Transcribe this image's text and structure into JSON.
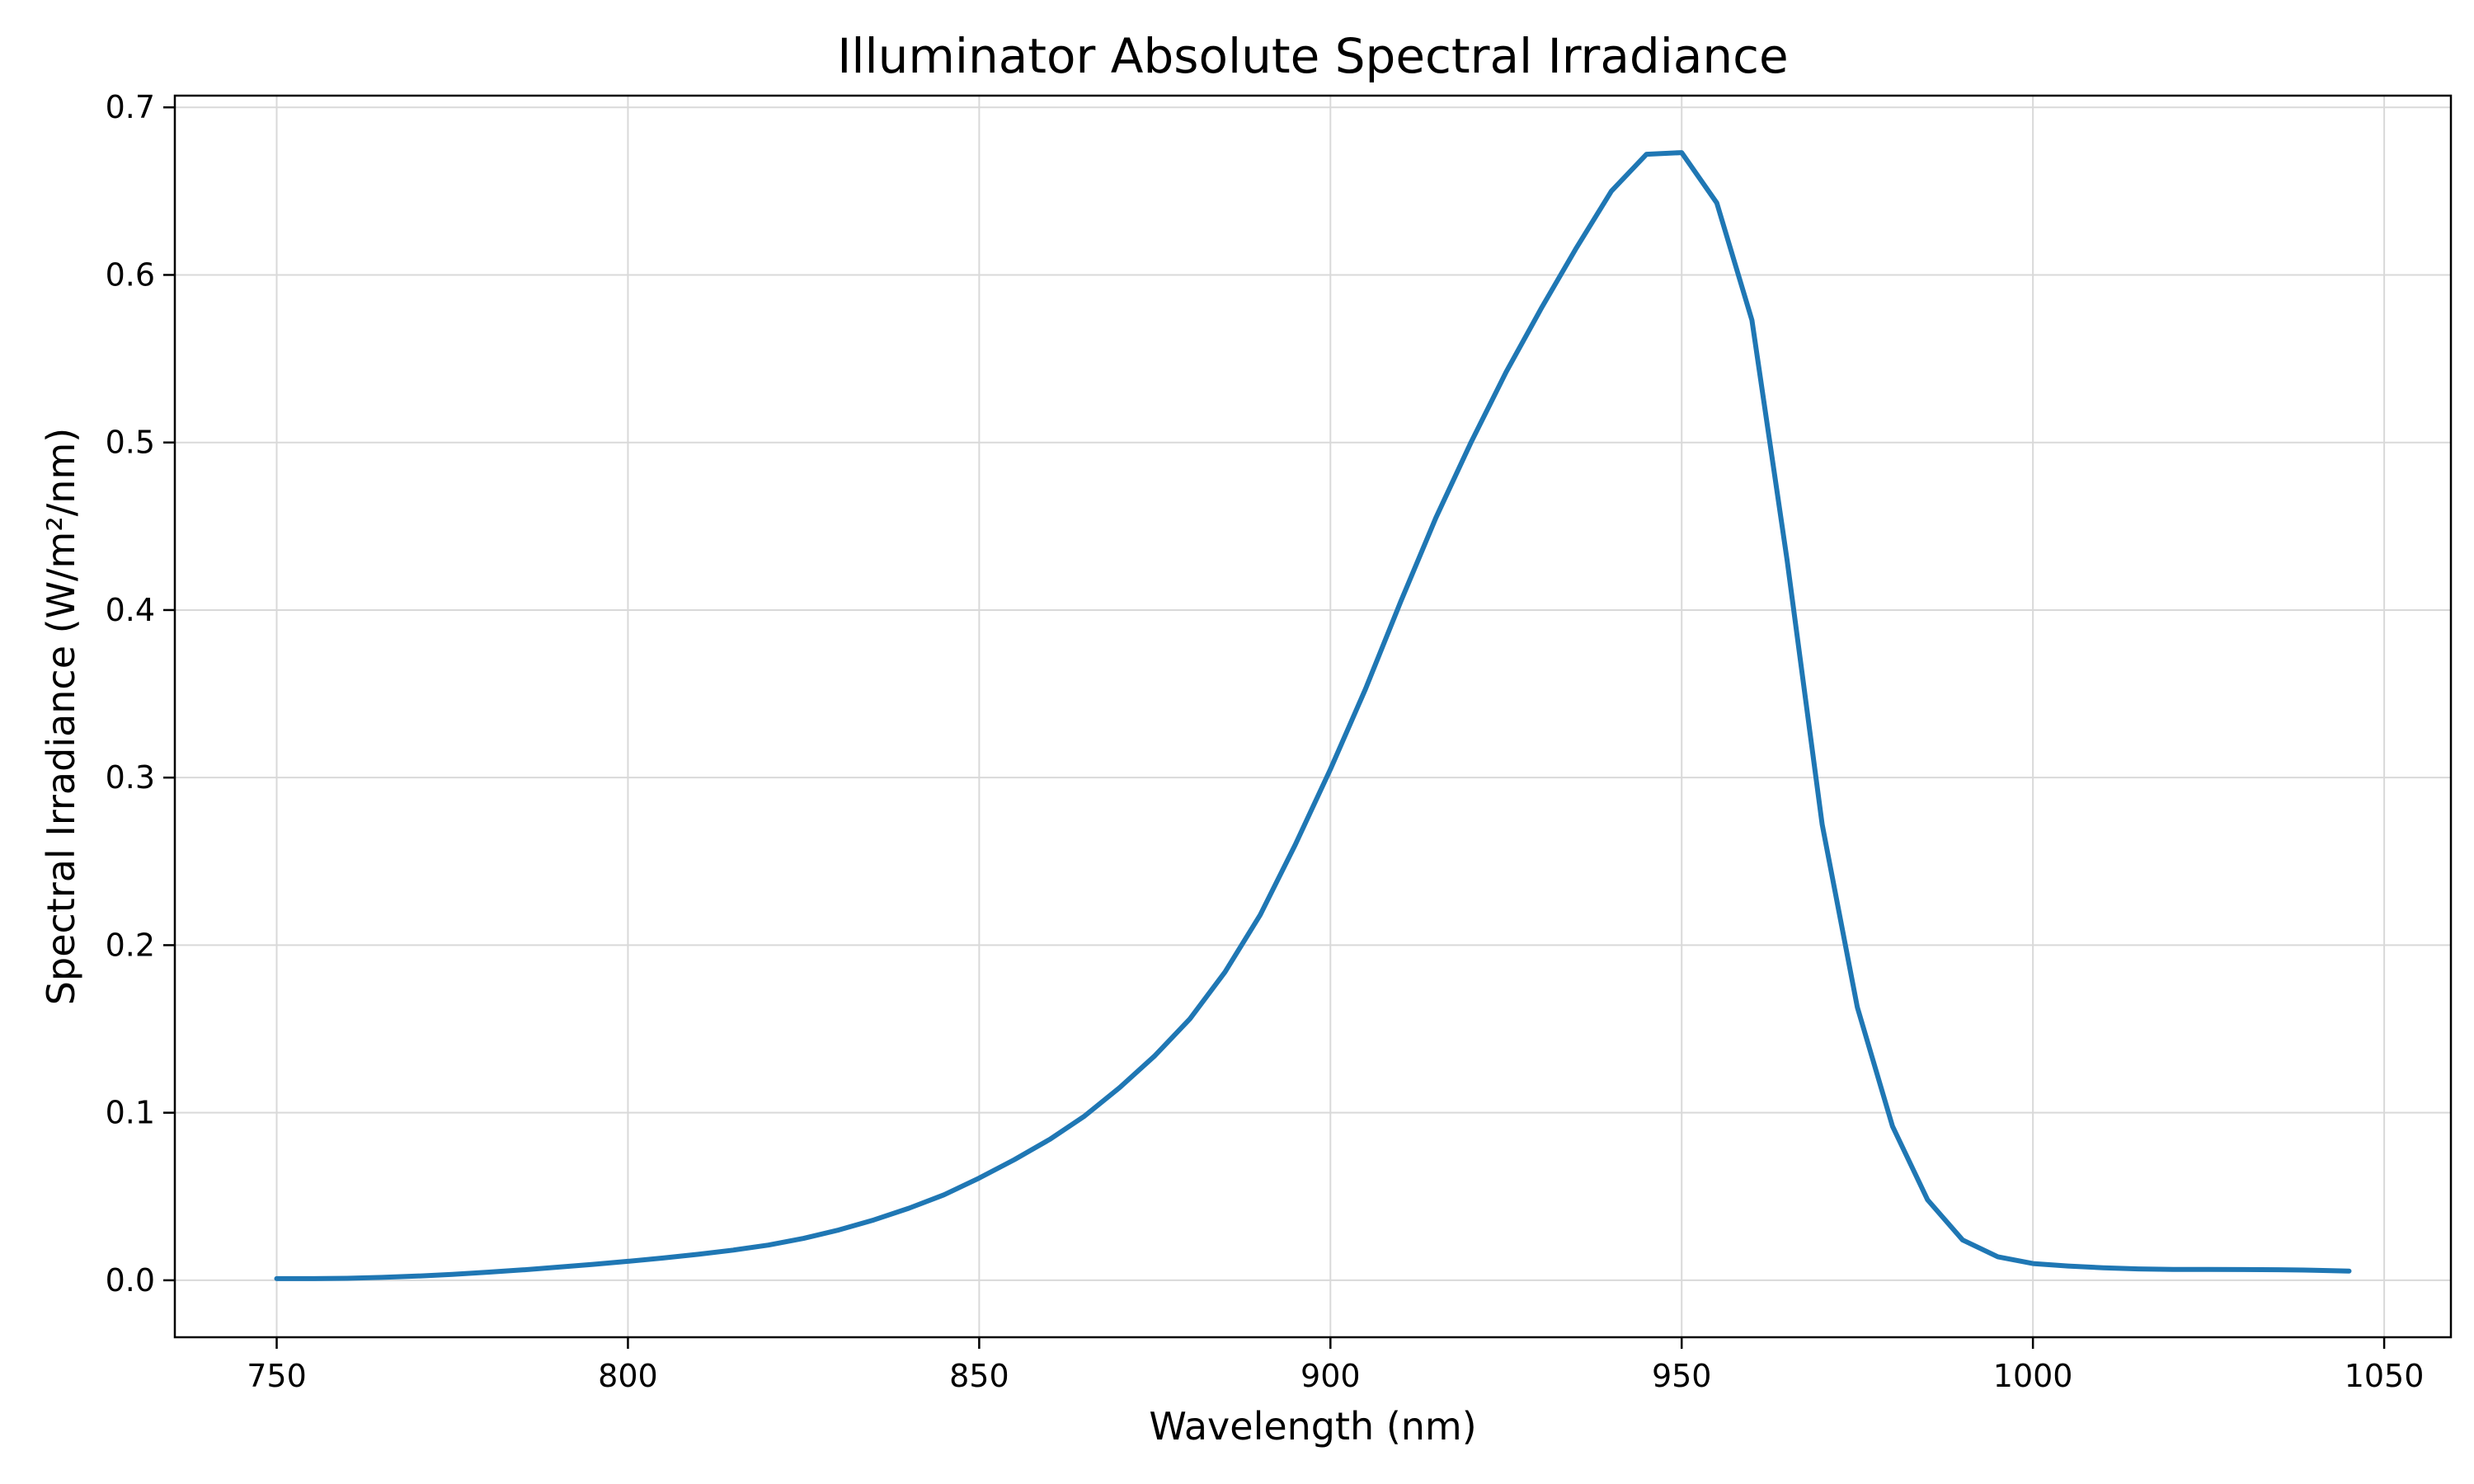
{
  "chart_data": {
    "type": "line",
    "title": "Illuminator Absolute Spectral Irradiance",
    "xlabel": "Wavelength (nm)",
    "ylabel": "Spectral Irradiance (W/m²/nm)",
    "xlim": [
      735.5,
      1059.5
    ],
    "ylim": [
      -0.034,
      0.707
    ],
    "x_ticks": [
      750,
      800,
      850,
      900,
      950,
      1000,
      1050
    ],
    "x_tick_labels": [
      "750",
      "800",
      "850",
      "900",
      "950",
      "1000",
      "1050"
    ],
    "y_ticks": [
      0.0,
      0.1,
      0.2,
      0.3,
      0.4,
      0.5,
      0.6,
      0.7
    ],
    "y_tick_labels": [
      "0.0",
      "0.1",
      "0.2",
      "0.3",
      "0.4",
      "0.5",
      "0.6",
      "0.7"
    ],
    "grid": true,
    "line_color": "#1f77b4",
    "x": [
      750,
      755,
      760,
      765,
      770,
      775,
      780,
      785,
      790,
      795,
      800,
      805,
      810,
      815,
      820,
      825,
      830,
      835,
      840,
      845,
      850,
      855,
      860,
      865,
      870,
      875,
      880,
      885,
      890,
      895,
      900,
      905,
      910,
      915,
      920,
      925,
      930,
      935,
      940,
      945,
      950,
      955,
      960,
      965,
      970,
      975,
      980,
      985,
      990,
      995,
      1000,
      1005,
      1010,
      1015,
      1020,
      1025,
      1030,
      1035,
      1040,
      1045
    ],
    "y": [
      0.001,
      0.001,
      0.0012,
      0.0017,
      0.0025,
      0.0035,
      0.0048,
      0.0062,
      0.0078,
      0.0095,
      0.0113,
      0.0133,
      0.0155,
      0.018,
      0.021,
      0.025,
      0.03,
      0.036,
      0.043,
      0.051,
      0.061,
      0.072,
      0.084,
      0.098,
      0.115,
      0.134,
      0.156,
      0.184,
      0.218,
      0.26,
      0.305,
      0.353,
      0.405,
      0.455,
      0.5,
      0.542,
      0.58,
      0.616,
      0.65,
      0.672,
      0.673,
      0.643,
      0.573,
      0.43,
      0.272,
      0.163,
      0.092,
      0.048,
      0.024,
      0.014,
      0.01,
      0.0085,
      0.0075,
      0.0068,
      0.0065,
      0.0065,
      0.0064,
      0.0063,
      0.006,
      0.0055
    ]
  }
}
